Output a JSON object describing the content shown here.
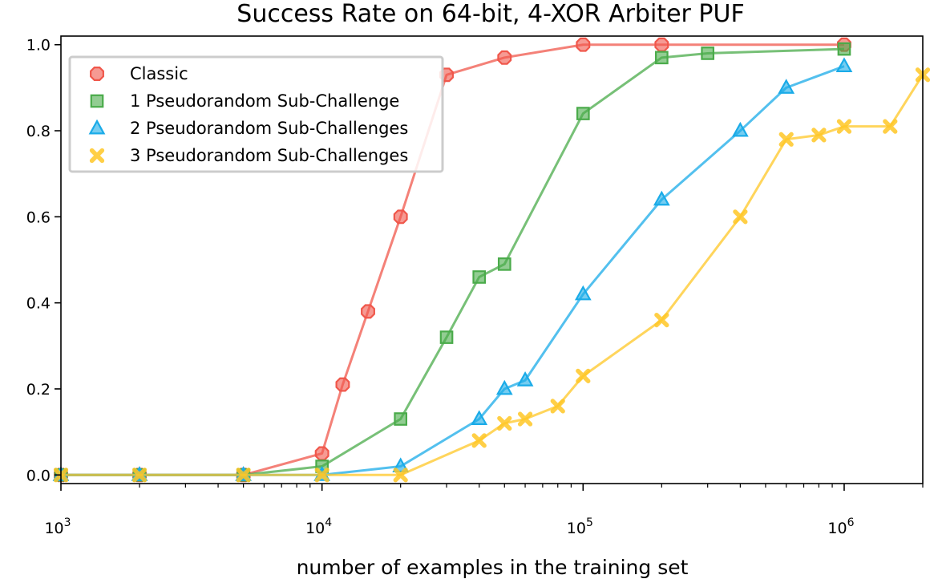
{
  "chart_data": {
    "type": "line",
    "title": "Success Rate on 64-bit, 4-XOR Arbiter PUF",
    "xlabel": "number of examples in the training set",
    "ylabel": "",
    "xscale": "log",
    "xlim": [
      1000,
      2000000
    ],
    "ylim": [
      -0.02,
      1.02
    ],
    "x_ticks": [
      {
        "value": 1000,
        "base": "10",
        "exp": "3"
      },
      {
        "value": 10000,
        "base": "10",
        "exp": "4"
      },
      {
        "value": 100000,
        "base": "10",
        "exp": "5"
      },
      {
        "value": 1000000,
        "base": "10",
        "exp": "6"
      }
    ],
    "y_ticks": [
      {
        "value": 0.0,
        "label": "0.0"
      },
      {
        "value": 0.2,
        "label": "0.2"
      },
      {
        "value": 0.4,
        "label": "0.4"
      },
      {
        "value": 0.6,
        "label": "0.6"
      },
      {
        "value": 0.8,
        "label": "0.8"
      },
      {
        "value": 1.0,
        "label": "1.0"
      }
    ],
    "grid": false,
    "legend_position": "top-left",
    "series": [
      {
        "name": "Classic",
        "color": "#f0574b",
        "marker": "octagon",
        "x": [
          1000,
          2000,
          5000,
          10000,
          12000,
          15000,
          20000,
          30000,
          50000,
          100000,
          200000,
          1000000
        ],
        "y": [
          0.0,
          0.0,
          0.0,
          0.05,
          0.21,
          0.38,
          0.6,
          0.93,
          0.97,
          1.0,
          1.0,
          1.0
        ]
      },
      {
        "name": "1 Pseudorandom Sub-Challenge",
        "color": "#4aab4a",
        "marker": "square",
        "x": [
          1000,
          2000,
          5000,
          10000,
          20000,
          30000,
          40000,
          50000,
          100000,
          200000,
          300000,
          1000000
        ],
        "y": [
          0.0,
          0.0,
          0.0,
          0.02,
          0.13,
          0.32,
          0.46,
          0.49,
          0.84,
          0.97,
          0.98,
          0.99
        ]
      },
      {
        "name": "2 Pseudorandom Sub-Challenges",
        "color": "#1aabe8",
        "marker": "triangle",
        "x": [
          1000,
          2000,
          5000,
          10000,
          20000,
          40000,
          50000,
          60000,
          100000,
          200000,
          400000,
          600000,
          1000000
        ],
        "y": [
          0.0,
          0.0,
          0.0,
          0.0,
          0.02,
          0.13,
          0.2,
          0.22,
          0.42,
          0.64,
          0.8,
          0.9,
          0.95
        ]
      },
      {
        "name": "3 Pseudorandom Sub-Challenges",
        "color": "#ffc726",
        "marker": "x",
        "x": [
          1000,
          2000,
          5000,
          10000,
          20000,
          40000,
          50000,
          60000,
          80000,
          100000,
          200000,
          400000,
          600000,
          800000,
          1000000,
          1500000,
          2000000
        ],
        "y": [
          0.0,
          0.0,
          0.0,
          0.0,
          0.0,
          0.08,
          0.12,
          0.13,
          0.16,
          0.23,
          0.36,
          0.6,
          0.78,
          0.79,
          0.81,
          0.81,
          0.93
        ]
      }
    ]
  }
}
